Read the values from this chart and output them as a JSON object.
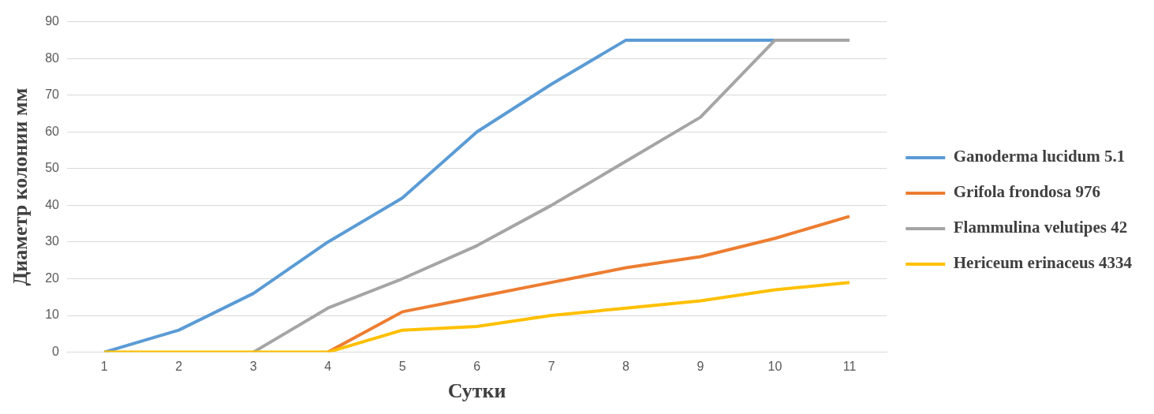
{
  "chart_data": {
    "type": "line",
    "xlabel": "Сутки",
    "ylabel": "Диаметр колонии мм",
    "categories": [
      "1",
      "2",
      "3",
      "4",
      "5",
      "6",
      "7",
      "8",
      "9",
      "10",
      "11"
    ],
    "series": [
      {
        "name": "Ganoderma lucidum 5.1",
        "color": "#5b9bd5",
        "values": [
          0,
          6,
          16,
          30,
          42,
          60,
          73,
          85,
          85,
          85,
          85
        ]
      },
      {
        "name": "Grifola frondosa 976",
        "color": "#ed7d31",
        "values": [
          null,
          null,
          null,
          0,
          11,
          15,
          19,
          23,
          26,
          31,
          37
        ]
      },
      {
        "name": "Flammulina velutipes 42",
        "color": "#a5a5a5",
        "values": [
          null,
          null,
          0,
          12,
          20,
          29,
          40,
          52,
          64,
          85,
          85
        ]
      },
      {
        "name": "Hericeum erinaceus 4334",
        "color": "#ffc000",
        "values": [
          0,
          0,
          0,
          0,
          6,
          7,
          10,
          12,
          14,
          17,
          19
        ]
      }
    ],
    "ylim": [
      0,
      90
    ],
    "yticks": [
      0,
      10,
      20,
      30,
      40,
      50,
      60,
      70,
      80,
      90
    ],
    "grid": "y",
    "legend": "right",
    "marker": "none",
    "line_style": "solid"
  }
}
